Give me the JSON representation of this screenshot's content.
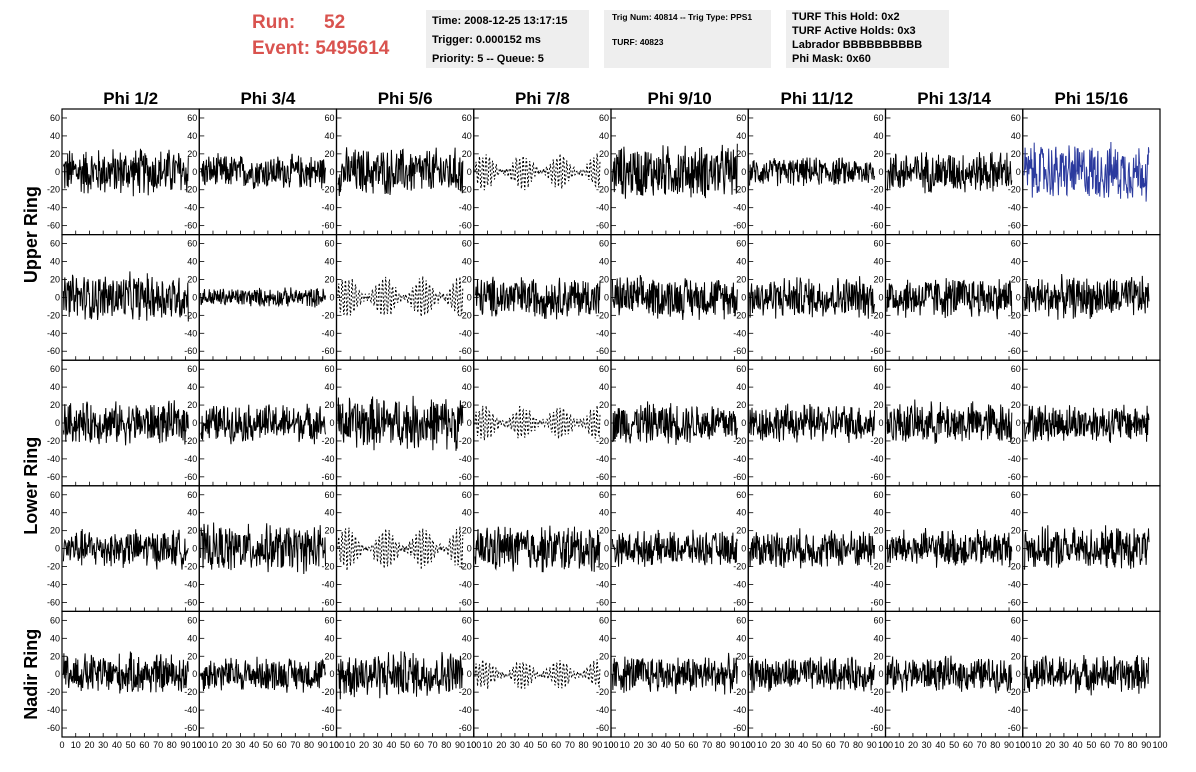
{
  "header": {
    "run_label": "Run:",
    "run_value": "52",
    "event_label": "Event:",
    "event_value": "5495614",
    "time_text": "Time: 2008-12-25 13:17:15",
    "trigger_text": "Trigger: 0.000152 ms",
    "priority_text": "Priority: 5 -- Queue: 5",
    "trig_num_text": "Trig Num: 40814 -- Trig Type: PPS1",
    "turf_text": "TURF: 40823",
    "turf_hold_text": "TURF This Hold: 0x2",
    "turf_active_text": "TURF Active Holds: 0x3",
    "labrador_text": "Labrador BBBBBBBBBB",
    "phi_mask_text": "Phi Mask: 0x60"
  },
  "chart_data": {
    "type": "line",
    "columns": [
      "Phi 1/2",
      "Phi 3/4",
      "Phi 5/6",
      "Phi 7/8",
      "Phi 9/10",
      "Phi 11/12",
      "Phi 13/14",
      "Phi 15/16"
    ],
    "rows": [
      "Upper Ring",
      "Lower Ring",
      "Nadir Ring"
    ],
    "panel_rows": 5,
    "xlim": [
      0,
      100
    ],
    "ylim": [
      -70,
      70
    ],
    "x_ticks": [
      0,
      10,
      20,
      30,
      40,
      50,
      60,
      70,
      80,
      90,
      100
    ],
    "x_tick_labels": [
      "0",
      "10",
      "20",
      "30",
      "40",
      "50",
      "60",
      "70",
      "80",
      "90",
      "100"
    ],
    "y_ticks": [
      -60,
      -40,
      -20,
      0,
      20,
      40,
      60
    ],
    "y_tick_labels": [
      "-60",
      "-40",
      "-20",
      "0",
      "20",
      "40",
      "60"
    ],
    "normal_color": "#000000",
    "highlight_color": "#2b3a9e",
    "highlighted_panels": [
      {
        "row": 0,
        "col": 7
      }
    ],
    "dashed_panels": [
      {
        "row": 0,
        "col": 3
      },
      {
        "row": 1,
        "col": 2
      },
      {
        "row": 2,
        "col": 3
      },
      {
        "row": 3,
        "col": 2
      },
      {
        "row": 4,
        "col": 3
      }
    ],
    "approx_amplitude": [
      [
        25,
        18,
        25,
        18,
        28,
        15,
        22,
        30
      ],
      [
        25,
        10,
        22,
        22,
        22,
        22,
        22,
        22
      ],
      [
        22,
        20,
        28,
        18,
        22,
        20,
        22,
        20
      ],
      [
        20,
        25,
        22,
        25,
        18,
        20,
        20,
        22
      ],
      [
        22,
        18,
        25,
        15,
        20,
        18,
        18,
        20
      ]
    ]
  }
}
